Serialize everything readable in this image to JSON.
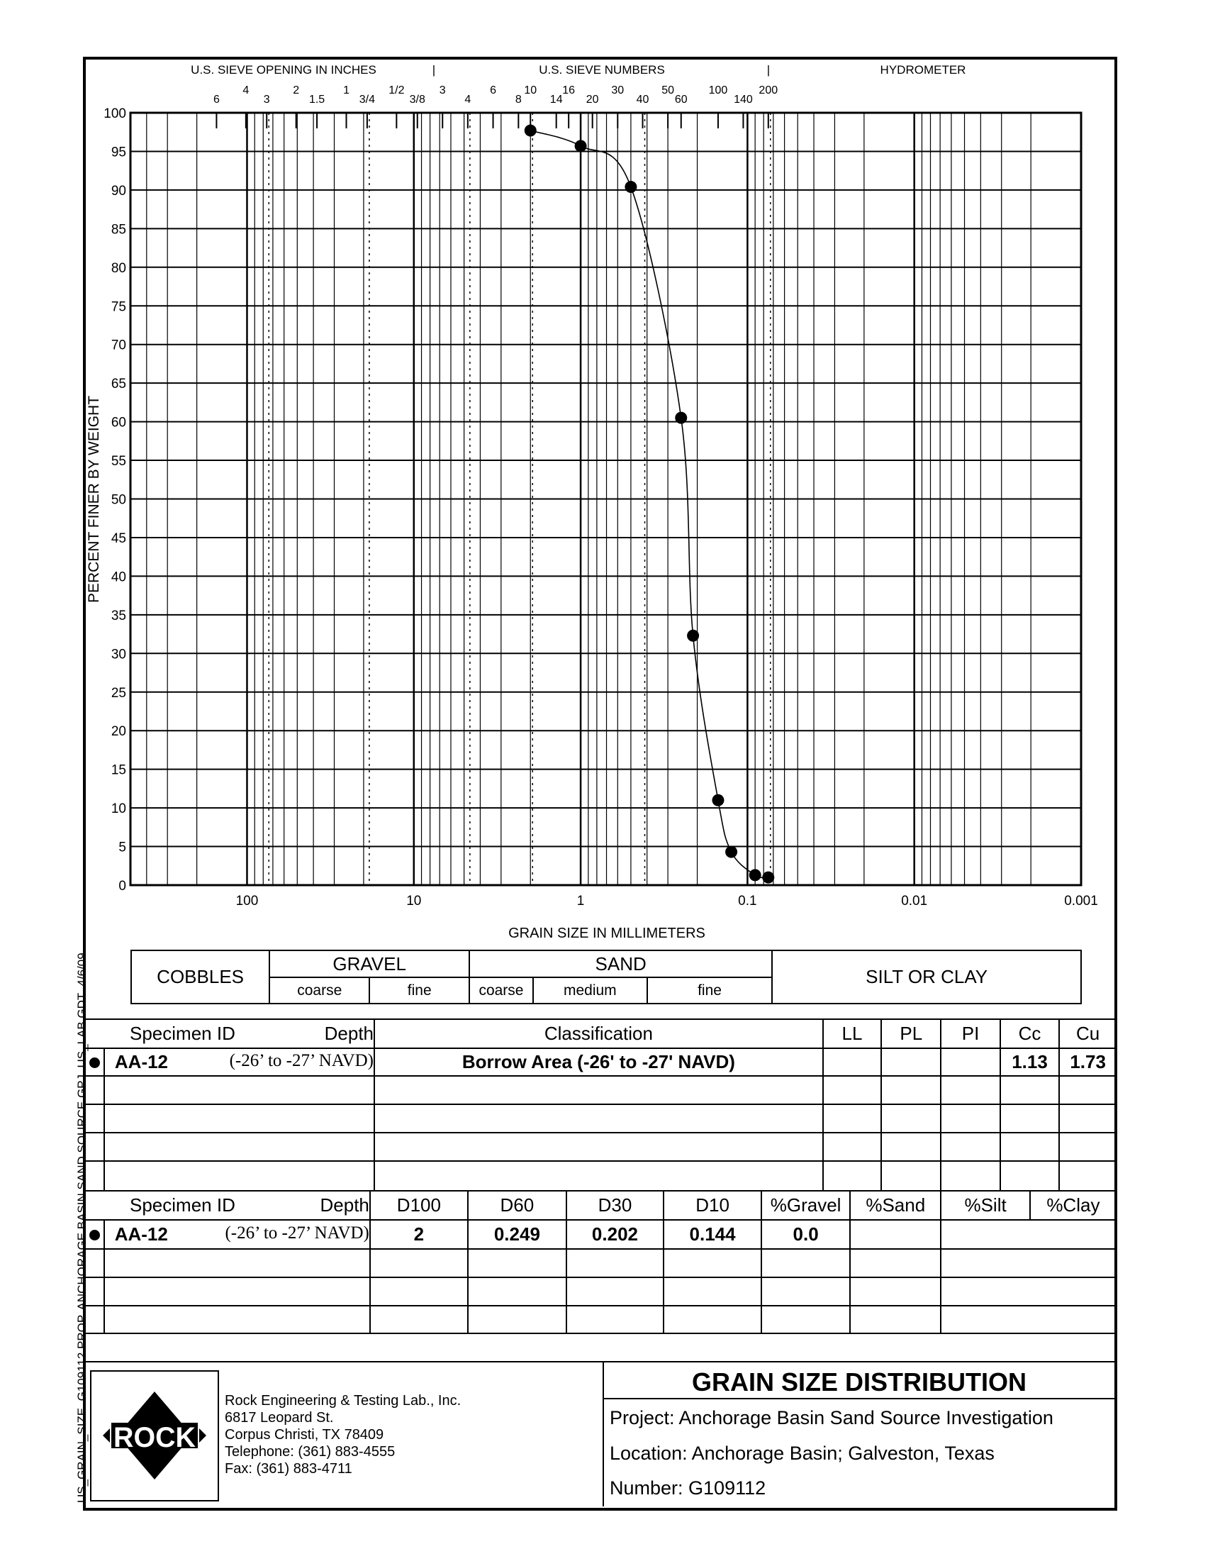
{
  "header": {
    "sieve_inches": "U.S. SIEVE OPENING IN INCHES",
    "sieve_numbers": "U.S. SIEVE NUMBERS",
    "hydrometer": "HYDROMETER",
    "separator": "|"
  },
  "chart_data": {
    "type": "line",
    "xlabel": "GRAIN SIZE IN MILLIMETERS",
    "ylabel": "PERCENT FINER BY WEIGHT",
    "xscale": "log",
    "xlim": [
      500,
      0.001
    ],
    "x_reversed": true,
    "ylim": [
      0,
      100
    ],
    "grid": true,
    "xticks": [
      {
        "v": 100,
        "label": "100"
      },
      {
        "v": 10,
        "label": "10"
      },
      {
        "v": 1,
        "label": "1"
      },
      {
        "v": 0.1,
        "label": "0.1"
      },
      {
        "v": 0.01,
        "label": "0.01"
      },
      {
        "v": 0.001,
        "label": "0.001"
      }
    ],
    "yticks": [
      0,
      5,
      10,
      15,
      20,
      25,
      30,
      35,
      40,
      45,
      50,
      55,
      60,
      65,
      70,
      75,
      80,
      85,
      90,
      95,
      100
    ],
    "sieve_labels": [
      {
        "label": "6",
        "mm": 152.4
      },
      {
        "label": "4",
        "mm": 101.6
      },
      {
        "label": "3",
        "mm": 76.2
      },
      {
        "label": "2",
        "mm": 50.8
      },
      {
        "label": "1.5",
        "mm": 38.1
      },
      {
        "label": "1",
        "mm": 25.4
      },
      {
        "label": "3/4",
        "mm": 19.05
      },
      {
        "label": "1/2",
        "mm": 12.7
      },
      {
        "label": "3/8",
        "mm": 9.525
      },
      {
        "label": "3",
        "mm": 6.73
      },
      {
        "label": "4",
        "mm": 4.75
      },
      {
        "label": "6",
        "mm": 3.35
      },
      {
        "label": "8",
        "mm": 2.36
      },
      {
        "label": "10",
        "mm": 2.0
      },
      {
        "label": "14",
        "mm": 1.4
      },
      {
        "label": "16",
        "mm": 1.18
      },
      {
        "label": "20",
        "mm": 0.85
      },
      {
        "label": "30",
        "mm": 0.6
      },
      {
        "label": "40",
        "mm": 0.425
      },
      {
        "label": "50",
        "mm": 0.3
      },
      {
        "label": "60",
        "mm": 0.25
      },
      {
        "label": "100",
        "mm": 0.15
      },
      {
        "label": "140",
        "mm": 0.106
      },
      {
        "label": "200",
        "mm": 0.075
      }
    ],
    "series": [
      {
        "marker": "circle",
        "color": "#000000",
        "x": [
          2.0,
          1.0,
          0.5,
          0.25,
          0.212,
          0.15,
          0.125,
          0.09,
          0.075
        ],
        "y": [
          97.7,
          95.7,
          90.4,
          60.5,
          32.3,
          11.0,
          4.3,
          1.3,
          1.0
        ]
      }
    ]
  },
  "classification_bar": {
    "cobbles": "COBBLES",
    "gravel": "GRAVEL",
    "sand": "SAND",
    "silt_clay": "SILT OR CLAY",
    "coarse": "coarse",
    "fine": "fine",
    "medium": "medium"
  },
  "table1": {
    "headers": {
      "specimen": "Specimen ID",
      "depth": "Depth",
      "classification": "Classification",
      "ll": "LL",
      "pl": "PL",
      "pi": "PI",
      "cc": "Cc",
      "cu": "Cu"
    },
    "row": {
      "id": "AA-12",
      "depth": "(-26’ to -27’ NAVD)",
      "classification": "Borrow Area (-26' to -27' NAVD)",
      "ll": "",
      "pl": "",
      "pi": "",
      "cc": "1.13",
      "cu": "1.73"
    }
  },
  "table2": {
    "headers": {
      "specimen": "Specimen ID",
      "depth": "Depth",
      "d100": "D100",
      "d60": "D60",
      "d30": "D30",
      "d10": "D10",
      "gravel": "%Gravel",
      "sand": "%Sand",
      "silt": "%Silt",
      "clay": "%Clay"
    },
    "row": {
      "id": "AA-12",
      "depth": "(-26’ to -27’ NAVD)",
      "d100": "2",
      "d60": "0.249",
      "d30": "0.202",
      "d10": "0.144",
      "gravel": "0.0",
      "sand": "",
      "siltclay": ""
    }
  },
  "footer": {
    "logo_text": "ROCK",
    "company": "Rock Engineering & Testing Lab., Inc.",
    "street": "6817 Leopard St.",
    "city": "Corpus Christi, TX 78409",
    "telephone": "Telephone:  (361) 883-4555",
    "fax": "Fax:  (361) 883-4711",
    "title": "GRAIN SIZE DISTRIBUTION",
    "project": "Project:  Anchorage Basin Sand Source Investigation",
    "location": "Location:  Anchorage Basin; Galveston, Texas",
    "number": "Number:  G109112"
  },
  "side_text": "US_GRAIN_SIZE  G109112 PROP. ANCHORAGE BASIN SAND SOURCE.GPJ  US_LAB.GDT  4/6/09"
}
